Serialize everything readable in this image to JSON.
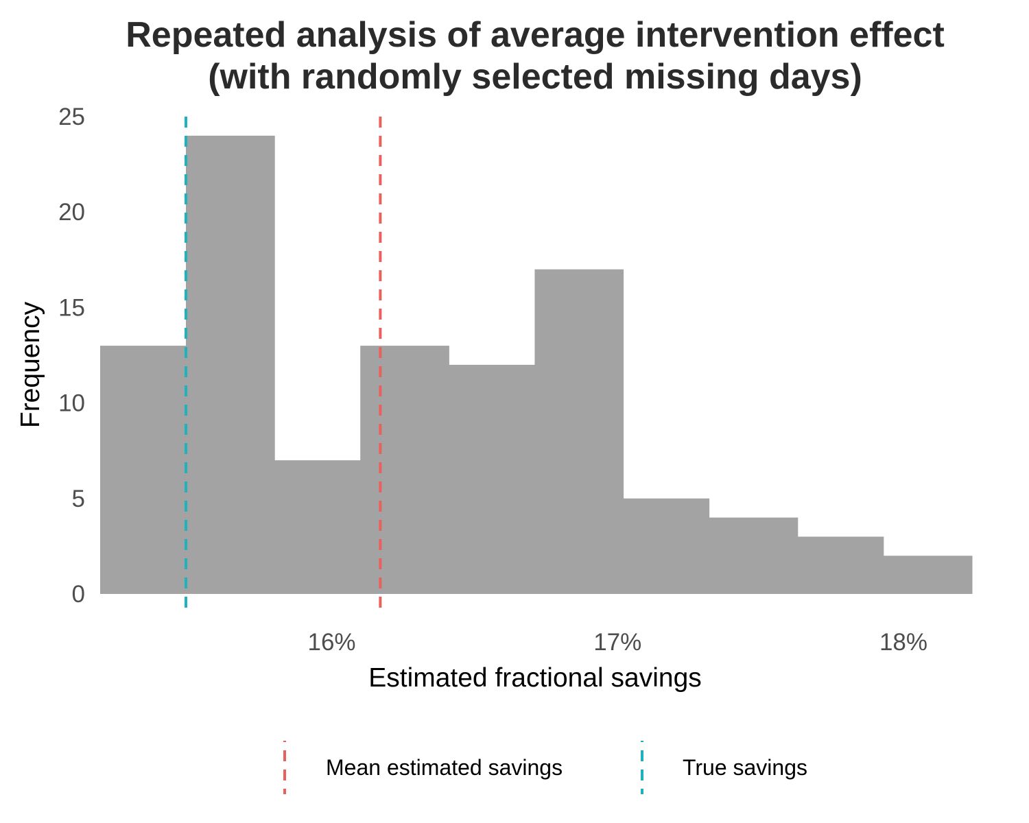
{
  "chart_data": {
    "type": "bar",
    "title": "Repeated analysis of average intervention effect",
    "subtitle": "(with randomly selected missing days)",
    "xlabel": "Estimated fractional savings",
    "ylabel": "Frequency",
    "x_ticks": [
      {
        "value": 0.16,
        "label": "16%"
      },
      {
        "value": 0.17,
        "label": "17%"
      },
      {
        "value": 0.18,
        "label": "18%"
      }
    ],
    "y_ticks": [
      {
        "value": 0,
        "label": "0"
      },
      {
        "value": 5,
        "label": "5"
      },
      {
        "value": 10,
        "label": "10"
      },
      {
        "value": 15,
        "label": "15"
      },
      {
        "value": 20,
        "label": "20"
      },
      {
        "value": 25,
        "label": "25"
      }
    ],
    "xlim": [
      0.1519,
      0.181
    ],
    "ylim": [
      0,
      25
    ],
    "grid": false,
    "bar_color": "#a3a3a3",
    "bins": [
      {
        "x0": 0.1519,
        "x1": 0.1549,
        "count": 13
      },
      {
        "x0": 0.1549,
        "x1": 0.158,
        "count": 24
      },
      {
        "x0": 0.158,
        "x1": 0.161,
        "count": 7
      },
      {
        "x0": 0.161,
        "x1": 0.1641,
        "count": 13
      },
      {
        "x0": 0.1641,
        "x1": 0.1671,
        "count": 12
      },
      {
        "x0": 0.1671,
        "x1": 0.1702,
        "count": 17
      },
      {
        "x0": 0.1702,
        "x1": 0.1732,
        "count": 5
      },
      {
        "x0": 0.1732,
        "x1": 0.1763,
        "count": 4
      },
      {
        "x0": 0.1763,
        "x1": 0.1793,
        "count": 3
      },
      {
        "x0": 0.1793,
        "x1": 0.1824,
        "count": 2
      }
    ],
    "reference_lines": [
      {
        "name": "Mean estimated savings",
        "x": 0.1617,
        "color": "#e8615f",
        "style": "dashed"
      },
      {
        "name": "True savings",
        "x": 0.1549,
        "color": "#1fb2bd",
        "style": "dashed"
      }
    ],
    "legend_position": "bottom"
  }
}
